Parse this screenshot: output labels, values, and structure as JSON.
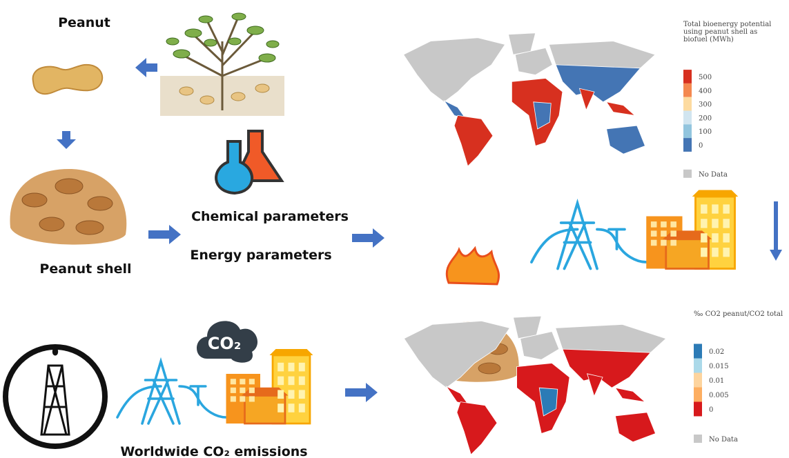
{
  "labels": {
    "peanut": "Peanut",
    "peanut_shell": "Peanut shell",
    "chemical": "Chemical parameters",
    "energy": "Energy parameters",
    "co2_icon": "CO₂",
    "emissions": "Worldwide CO₂ emissions"
  },
  "legend_energy": {
    "title": [
      "Total bioenergy potential",
      "using peanut shell as",
      "biofuel (MWh)"
    ],
    "items": [
      "500",
      "400",
      "300",
      "200",
      "100",
      "0"
    ],
    "no_data": "No Data"
  },
  "legend_co2": {
    "title": "‰ CO2 peanut/CO2 total",
    "items": [
      "0.02",
      "0.015",
      "0.01",
      "0.005",
      "0"
    ],
    "no_data": "No Data"
  }
}
